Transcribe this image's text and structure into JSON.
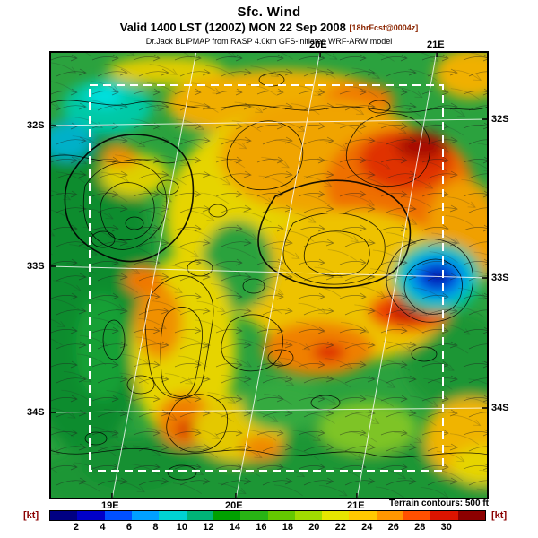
{
  "header": {
    "title": "Sfc. Wind",
    "valid": "Valid 1400 LST (1200Z) MON 22 Sep 2008",
    "fcst_note": "[18hrFcst@0004z]",
    "model": "Dr.Jack BLIPMAP from RASP 4.0km GFS-initiated WRF-ARW model"
  },
  "axes": {
    "lat_left": [
      "32S",
      "33S",
      "34S"
    ],
    "lat_right": [
      "32S",
      "33S",
      "34S"
    ],
    "lon_top": [
      "20E",
      "21E"
    ],
    "lon_bottom": [
      "19E",
      "20E",
      "21E"
    ]
  },
  "legend": {
    "unit_left": "[kt]",
    "unit_right": "[kt]",
    "terrain_note": "Terrain contours: 500 ft",
    "unit_color": "#8b0000"
  },
  "colorbar": {
    "ticks": [
      "2",
      "4",
      "6",
      "8",
      "10",
      "12",
      "14",
      "16",
      "18",
      "20",
      "22",
      "24",
      "26",
      "28",
      "30"
    ],
    "colors": [
      "#000082",
      "#0000c8",
      "#0050ff",
      "#00a0ff",
      "#00d2d2",
      "#00b478",
      "#00a000",
      "#28b414",
      "#64c800",
      "#a0dc00",
      "#e6e600",
      "#ffc800",
      "#ff9600",
      "#ff5000",
      "#dc1400",
      "#8c0000"
    ]
  }
}
